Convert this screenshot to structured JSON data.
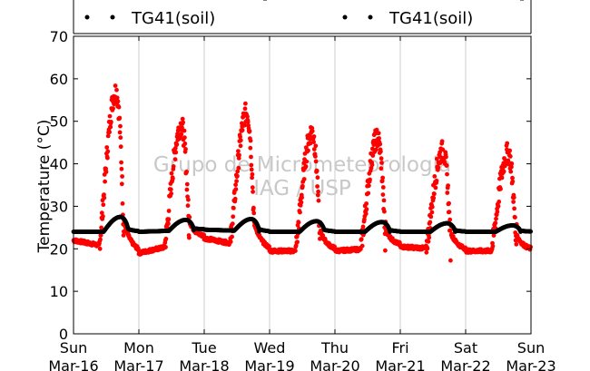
{
  "chart_data": {
    "type": "scatter",
    "title": "",
    "xlabel": "",
    "ylabel": "Temperature (°C)",
    "ylim": [
      0,
      70
    ],
    "yticks": [
      0,
      10,
      20,
      30,
      40,
      50,
      60,
      70
    ],
    "grid": "vertical",
    "legend_placement": "top",
    "watermark": [
      "Grupo de Micrometeorologia",
      "IAG / USP"
    ],
    "xlim": [
      "Mar-16",
      "Mar-23"
    ],
    "x_ticks": [
      {
        "day": "Sun",
        "date": "Mar-16"
      },
      {
        "day": "Mon",
        "date": "Mar-17"
      },
      {
        "day": "Tue",
        "date": "Mar-18"
      },
      {
        "day": "Wed",
        "date": "Mar-19"
      },
      {
        "day": "Thu",
        "date": "Mar-20"
      },
      {
        "day": "Fri",
        "date": "Mar-21"
      },
      {
        "day": "Sat",
        "date": "Mar-22"
      },
      {
        "day": "Sun",
        "date": "Mar-23"
      }
    ],
    "series": [
      {
        "name": "TG41(soil)",
        "color": "#ff0000",
        "daily": [
          {
            "date": "Mar-16",
            "min": 22,
            "max": 57
          },
          {
            "date": "Mar-17",
            "min": 19,
            "max": 49
          },
          {
            "date": "Mar-18",
            "min": 22.5,
            "max": 52
          },
          {
            "date": "Mar-19",
            "min": 19.5,
            "max": 47.5
          },
          {
            "date": "Mar-20",
            "min": 19.5,
            "max": 46
          },
          {
            "date": "Mar-21",
            "min": 20.5,
            "max": 43
          },
          {
            "date": "Mar-22",
            "min": 19.5,
            "max": 42.5
          },
          {
            "date": "Mar-23",
            "min": 19.5,
            "max": null
          }
        ]
      },
      {
        "name": "TG41(soil)",
        "color": "#000000",
        "daily": [
          {
            "date": "Mar-16",
            "min": 24,
            "max": 27.5
          },
          {
            "date": "Mar-17",
            "min": 24,
            "max": 26.8
          },
          {
            "date": "Mar-18",
            "min": 24.5,
            "max": 27
          },
          {
            "date": "Mar-19",
            "min": 24,
            "max": 26.5
          },
          {
            "date": "Mar-20",
            "min": 24,
            "max": 26.3
          },
          {
            "date": "Mar-21",
            "min": 24,
            "max": 26
          },
          {
            "date": "Mar-22",
            "min": 24,
            "max": 25.5
          },
          {
            "date": "Mar-23",
            "min": 24,
            "max": null
          }
        ]
      }
    ]
  }
}
